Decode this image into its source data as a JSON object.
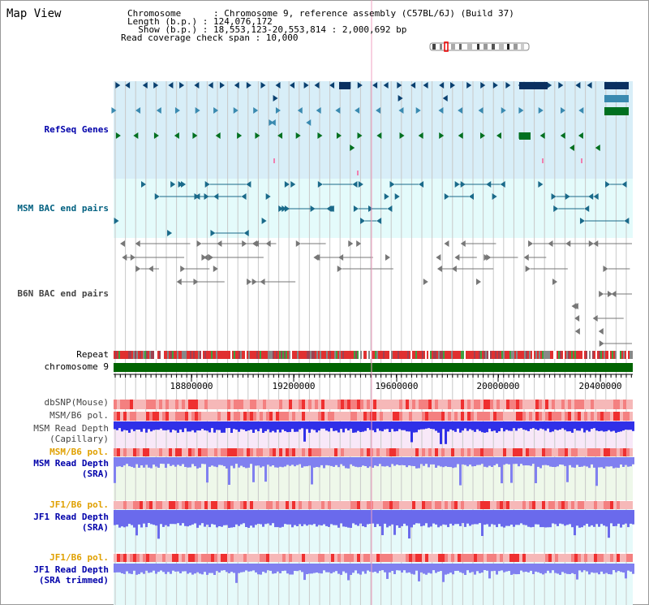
{
  "header": {
    "title": "Map View",
    "info_lines": [
      "Chromosome      : Chromosome 9, reference assembly (C57BL/6J) (Build 37)",
      "Length (b.p.) : 124,076,172",
      "  Show (b.p.) : 18,553,123-20,553,814 : 2,000,692 bp",
      "Read coverage check span : 10,000"
    ]
  },
  "tracks": {
    "refseq": "RefSeq Genes",
    "msm_bac": "MSM BAC end pairs",
    "b6n_bac": "B6N BAC end pairs",
    "repeat": "Repeat",
    "chromosome": "chromosome 9",
    "dbsnp": "dbSNP(Mouse)",
    "msm_b6_pol_1": "MSM/B6 pol.",
    "msm_read_depth_cap_1": "MSM Read Depth",
    "msm_read_depth_cap_2": "(Capillary)",
    "msm_b6_pol_2": "MSM/B6 pol.",
    "msm_read_depth_sra_1": "MSM Read Depth",
    "msm_read_depth_sra_2": "(SRA)",
    "jf1_b6_pol_1": "JF1/B6 pol.",
    "jf1_read_depth_sra_1": "JF1 Read Depth",
    "jf1_read_depth_sra_2": "(SRA)",
    "jf1_b6_pol_2": "JF1/B6 pol.",
    "jf1_read_depth_trim_1": "JF1 Read Depth",
    "jf1_read_depth_trim_2": "(SRA trimmed)"
  },
  "axis": {
    "ticks": [
      "18800000",
      "19200000",
      "19600000",
      "20000000",
      "20400000"
    ]
  },
  "colors": {
    "refseq_bg": "#d8eef8",
    "msm_bac_bg": "#e4fbfb",
    "pol_red": "#ef3030",
    "pol_pink": "#f6b8b8",
    "depth_blue": "#2a2aee",
    "depth_light": "#7f7ff0",
    "chromosome": "#006400",
    "label_blue": "#0000aa",
    "label_teal": "#006080",
    "label_orange": "#e0a000",
    "label_gray": "#444444"
  }
}
